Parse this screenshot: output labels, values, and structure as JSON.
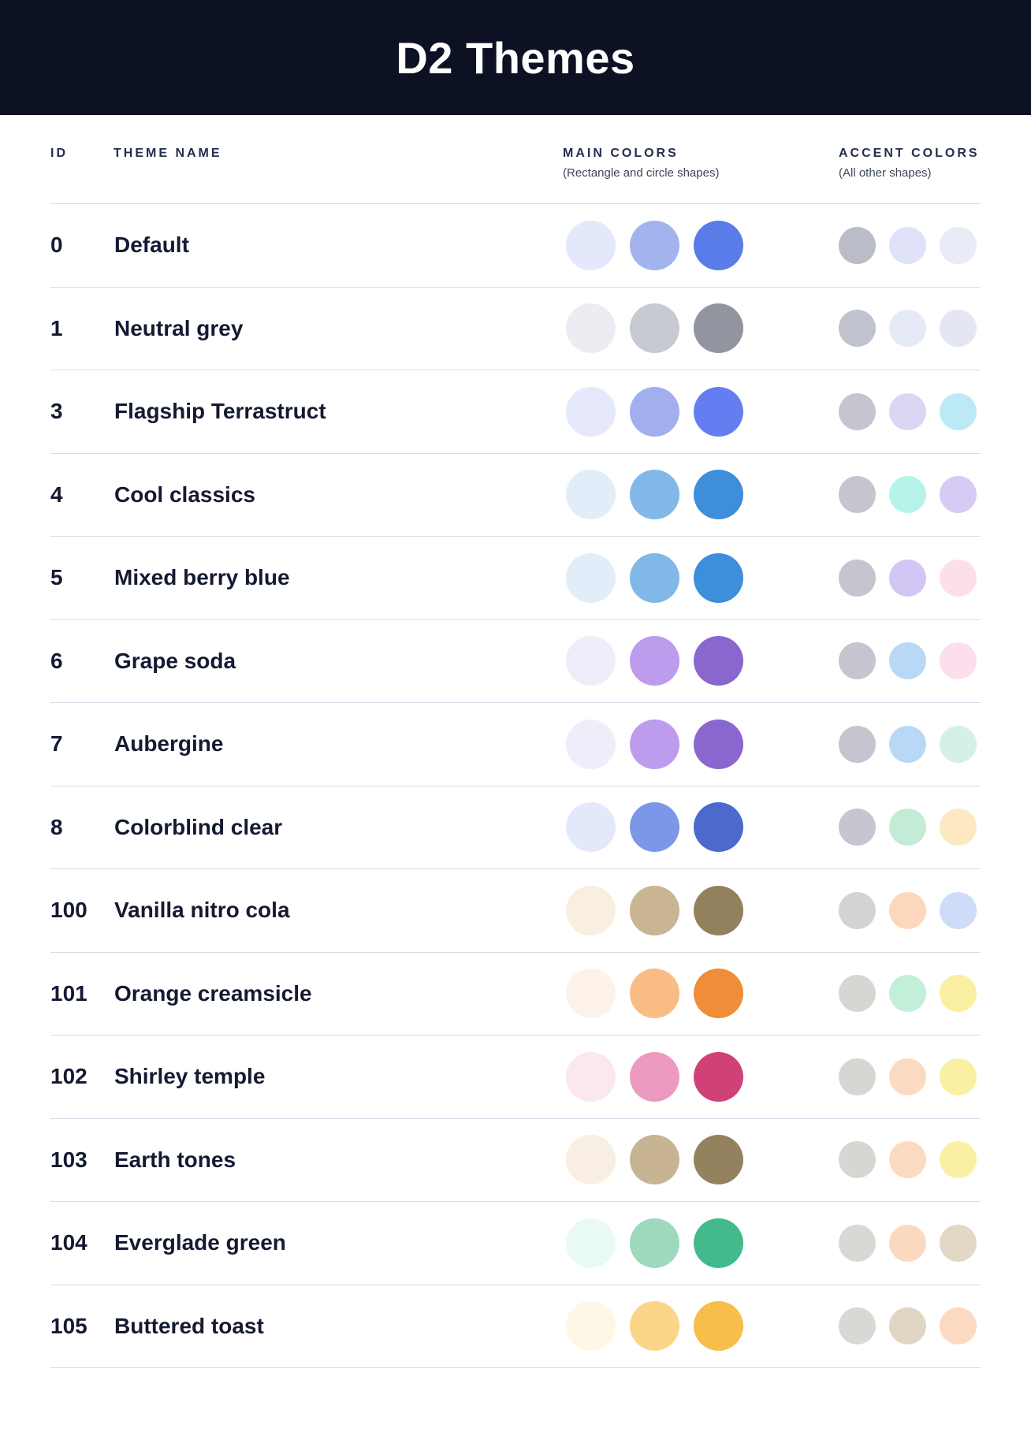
{
  "header": {
    "title": "D2 Themes"
  },
  "table": {
    "columns": {
      "id": "ID",
      "theme_name": "THEME NAME",
      "main_colors": {
        "label": "MAIN COLORS",
        "caption": "(Rectangle and circle shapes)"
      },
      "accent_colors": {
        "label": "ACCENT COLORS",
        "caption": "(All other shapes)"
      }
    },
    "themes": [
      {
        "id": "0",
        "name": "Default",
        "main_colors": [
          "#E4E8FB",
          "#A2B3EE",
          "#5A7CE8"
        ],
        "accent_colors": [
          "#BABCC8",
          "#DFE2F8",
          "#E9EBF6"
        ]
      },
      {
        "id": "1",
        "name": "Neutral grey",
        "main_colors": [
          "#EBEDF3",
          "#C7C9D3",
          "#92949F"
        ],
        "accent_colors": [
          "#C0C2CE",
          "#E6E9F6",
          "#E4E7F3"
        ]
      },
      {
        "id": "3",
        "name": "Flagship Terrastruct",
        "main_colors": [
          "#E5E9FB",
          "#A2AFEE",
          "#647EF2"
        ],
        "accent_colors": [
          "#C4C5CF",
          "#DCD5F3",
          "#BBEAF6"
        ]
      },
      {
        "id": "4",
        "name": "Cool classics",
        "main_colors": [
          "#E1EEFA",
          "#81B8E8",
          "#3D8EDB"
        ],
        "accent_colors": [
          "#C4C5CF",
          "#B6F4E9",
          "#D6CBF5"
        ]
      },
      {
        "id": "5",
        "name": "Mixed berry blue",
        "main_colors": [
          "#E1EEFA",
          "#81B8E8",
          "#3D8EDB"
        ],
        "accent_colors": [
          "#C4C5CF",
          "#D4C6F4",
          "#FCDFEA"
        ]
      },
      {
        "id": "6",
        "name": "Grape soda",
        "main_colors": [
          "#F1ECFA",
          "#BD9CEE",
          "#8A66CF"
        ],
        "accent_colors": [
          "#C4C5CF",
          "#B8D9F5",
          "#FCDEEC"
        ]
      },
      {
        "id": "7",
        "name": "Aubergine",
        "main_colors": [
          "#F1ECFA",
          "#BD9CEE",
          "#8A66CF"
        ],
        "accent_colors": [
          "#C4C5CF",
          "#B8D9F5",
          "#D5F1E6"
        ]
      },
      {
        "id": "8",
        "name": "Colorblind clear",
        "main_colors": [
          "#E3E9FB",
          "#7D97E8",
          "#4C69CC"
        ],
        "accent_colors": [
          "#C5C6D0",
          "#C2ECD5",
          "#FCE9C2"
        ]
      },
      {
        "id": "100",
        "name": "Vanilla nitro cola",
        "main_colors": [
          "#F9EEDF",
          "#C9B493",
          "#93805D"
        ],
        "accent_colors": [
          "#D3D3D1",
          "#FCD7BC",
          "#CFDCF9"
        ]
      },
      {
        "id": "101",
        "name": "Orange creamsicle",
        "main_colors": [
          "#FDF2EA",
          "#F9BC85",
          "#EF8D38"
        ],
        "accent_colors": [
          "#D6D6D2",
          "#C3EED8",
          "#FAEFA2"
        ]
      },
      {
        "id": "102",
        "name": "Shirley temple",
        "main_colors": [
          "#FBE7EE",
          "#EC9AC0",
          "#D04277"
        ],
        "accent_colors": [
          "#D6D6D2",
          "#FCDAC2",
          "#FAF0A4"
        ]
      },
      {
        "id": "103",
        "name": "Earth tones",
        "main_colors": [
          "#F8EEE3",
          "#C8B493",
          "#94825F"
        ],
        "accent_colors": [
          "#D6D6D2",
          "#FCDAC2",
          "#FAF0A4"
        ]
      },
      {
        "id": "104",
        "name": "Everglade green",
        "main_colors": [
          "#E9FAF3",
          "#9ED9BE",
          "#42BA8C"
        ],
        "accent_colors": [
          "#D8D8D4",
          "#FBD9C0",
          "#E2D8C5"
        ]
      },
      {
        "id": "105",
        "name": "Buttered toast",
        "main_colors": [
          "#FEF7E6",
          "#FBD688",
          "#F7BE49"
        ],
        "accent_colors": [
          "#D8D8D4",
          "#E0D6C3",
          "#FCDAC2"
        ]
      }
    ]
  },
  "colors": {
    "header_bg": "#0c1124",
    "title_color": "#ffffff",
    "heading": "#242e4d",
    "caption": "#3e465a",
    "text": "#151a33",
    "divider": "#d8dbea",
    "bg": "#ffffff"
  }
}
